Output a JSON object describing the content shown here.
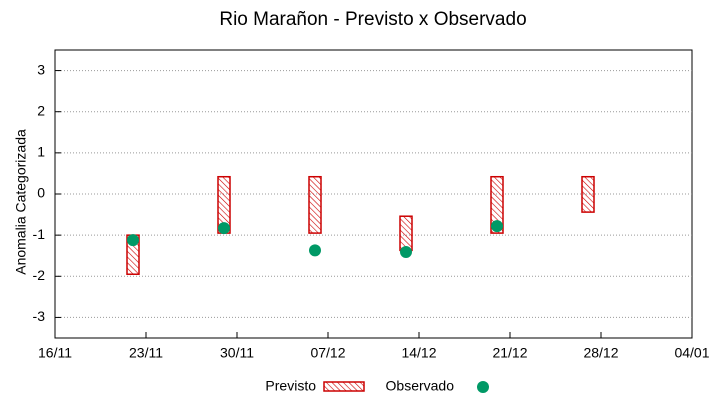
{
  "chart_data": {
    "type": "range_scatter",
    "title": "Rio Marañon - Previsto x Observado",
    "y_label": "Anomalia Categorizada",
    "x": [
      "22/11",
      "29/11",
      "06/12",
      "13/12",
      "20/12",
      "27/12"
    ],
    "series": [
      {
        "name": "Previsto",
        "color": "#cc0000",
        "low": [
          -1.95,
          -0.95,
          -0.95,
          -1.37,
          -0.95,
          -0.44
        ],
        "high": [
          -1.0,
          0.42,
          0.42,
          -0.54,
          0.42,
          0.42
        ]
      },
      {
        "name": "Observado",
        "color": "#009966",
        "values": [
          -1.12,
          -0.83,
          -1.37,
          -1.41,
          -0.78,
          null
        ]
      }
    ],
    "xlim": [
      "16/11",
      "04/01"
    ],
    "xticks": [
      "16/11",
      "23/11",
      "30/11",
      "07/12",
      "14/12",
      "21/12",
      "28/12",
      "04/01"
    ],
    "ylim": [
      -3.5,
      3.5
    ],
    "yticks": [
      -3,
      -2,
      -1,
      0,
      1,
      2,
      3
    ],
    "grid": true
  }
}
